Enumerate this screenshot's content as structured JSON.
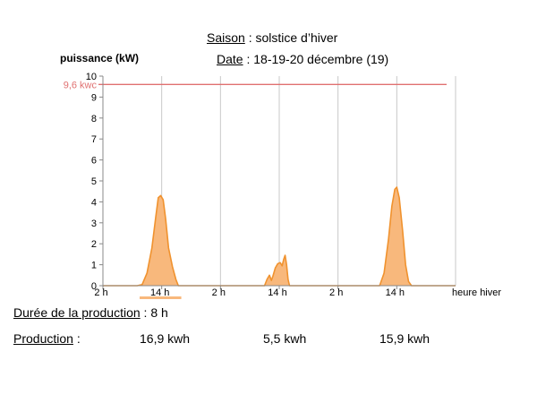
{
  "header": {
    "saison_label": "Saison",
    "saison_sep": " : ",
    "saison_value": "solstice d’hiver",
    "date_label": "Date",
    "date_sep": "  : ",
    "date_value": "18-19-20 décembre (19)"
  },
  "chart_data": {
    "type": "area",
    "ylabel": "puissance  (kW)",
    "xlabel": "heure hiver",
    "ylim": [
      0,
      10
    ],
    "yticks": [
      "0",
      "1",
      "2",
      "3",
      "4",
      "5",
      "6",
      "7",
      "8",
      "9",
      "10"
    ],
    "xticks": [
      "2 h",
      "14 h",
      "2 h",
      "14 h",
      "2 h",
      "14 h"
    ],
    "grid": "vertical at each tick label",
    "reference_line": {
      "label": "9,6 kwc",
      "value": 9.6,
      "color": "#e07070"
    },
    "series_color": "#f0922e",
    "series_fill": "#f8b87c",
    "x_unit": "hours from 00:00 on day 1",
    "series": [
      {
        "values": [
          [
            9,
            0
          ],
          [
            10,
            0.05
          ],
          [
            11,
            0.6
          ],
          [
            12,
            1.8
          ],
          [
            12.8,
            3.3
          ],
          [
            13.3,
            4.2
          ],
          [
            13.8,
            4.3
          ],
          [
            14.3,
            4.1
          ],
          [
            14.8,
            3.2
          ],
          [
            15.4,
            1.8
          ],
          [
            16.2,
            0.9
          ],
          [
            16.9,
            0.3
          ],
          [
            17.4,
            0
          ],
          [
            35.0,
            0
          ],
          [
            35.5,
            0.3
          ],
          [
            36.0,
            0.5
          ],
          [
            36.4,
            0.25
          ],
          [
            36.7,
            0.45
          ],
          [
            37.2,
            0.85
          ],
          [
            37.7,
            1.05
          ],
          [
            38.2,
            1.1
          ],
          [
            38.6,
            0.95
          ],
          [
            38.9,
            1.25
          ],
          [
            39.2,
            1.45
          ],
          [
            39.5,
            1.0
          ],
          [
            39.8,
            0.3
          ],
          [
            40.1,
            0
          ],
          [
            58.5,
            0
          ],
          [
            59.4,
            0.6
          ],
          [
            60.3,
            2.2
          ],
          [
            61.0,
            3.8
          ],
          [
            61.6,
            4.6
          ],
          [
            62.0,
            4.7
          ],
          [
            62.5,
            4.2
          ],
          [
            63.2,
            2.6
          ],
          [
            63.8,
            1.0
          ],
          [
            64.4,
            0.2
          ],
          [
            65,
            0
          ]
        ]
      }
    ],
    "x_range": [
      2,
      74
    ]
  },
  "summary": {
    "duree_label": "Durée de la production",
    "duree_sep": " : ",
    "duree_value": "8 h",
    "production_label": "Production",
    "production_sep": " :",
    "day_values": [
      "16,9 kwh",
      "5,5 kwh",
      "15,9 kwh"
    ]
  },
  "colors": {
    "daylight_bar": "#f8b87c",
    "grid": "#c8c8c8",
    "axis": "#888888"
  }
}
